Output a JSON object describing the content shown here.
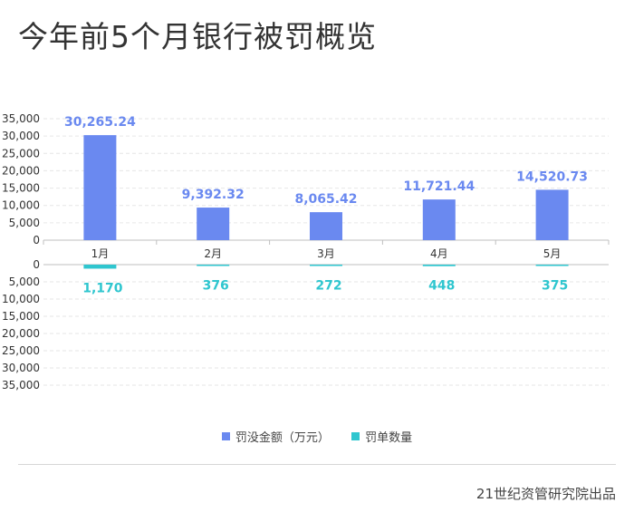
{
  "title": "今年前5个月银行被罚概览",
  "source": "21世纪资管研究院出品",
  "colors": {
    "amount": "#6a89f0",
    "count": "#2fc6cf"
  },
  "chart_data": {
    "type": "bar",
    "categories": [
      "1月",
      "2月",
      "3月",
      "4月",
      "5月"
    ],
    "series": [
      {
        "name": "罚没金额（万元）",
        "values": [
          30265.24,
          9392.32,
          8065.42,
          11721.44,
          14520.73
        ],
        "labels": [
          "30,265.24",
          "9,392.32",
          "8,065.42",
          "11,721.44",
          "14,520.73"
        ]
      },
      {
        "name": "罚单数量",
        "values": [
          1170,
          376,
          272,
          448,
          375
        ],
        "labels": [
          "1,170",
          "376",
          "272",
          "448",
          "375"
        ]
      }
    ],
    "ylim": [
      0,
      35000
    ],
    "yticks": [
      "0",
      "5,000",
      "10,000",
      "15,000",
      "20,000",
      "25,000",
      "30,000",
      "35,000"
    ],
    "legend": "bottom-center",
    "grid": true
  }
}
